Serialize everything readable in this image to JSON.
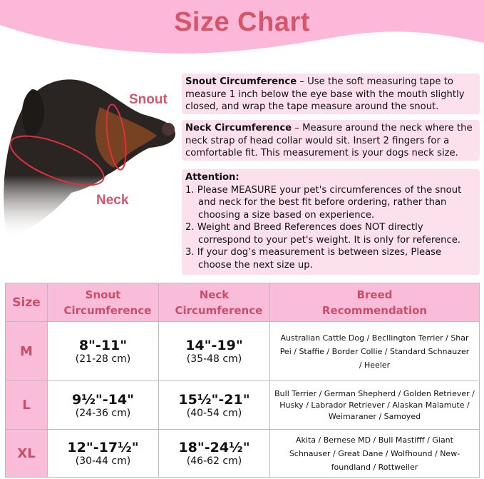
{
  "title": "Size Chart",
  "labels": {
    "snout": "Snout",
    "neck": "Neck"
  },
  "snout_box": {
    "heading": "Snout Circumference",
    "text": " – Use the soft measuring tape to measure 1 inch below the eye base with the mouth slightly closed, and wrap the tape measure around the snout."
  },
  "neck_box": {
    "heading": "Neck Circumference",
    "text": " – Measure around the neck where the neck strap of head collar would sit. Insert 2 fingers for a comfortable fit. This measurement is your dogs neck size."
  },
  "attention": {
    "heading": "Attention:",
    "items": [
      "1. Please MEASURE your pet's circumferences of the snout and neck for the best fit before ordering, rather than choosing a size based on experience.",
      "2. Weight and Breed References does NOT directly correspond to your pet's weight. It is only for reference.",
      "3. If your dog’s measurement is between sizes, Please choose the next size up."
    ]
  },
  "table": {
    "headers": [
      "Size",
      "Snout Circumference",
      "Neck Circumference",
      "Breed Recommendation"
    ],
    "rows": [
      {
        "size": "M",
        "snout_in": "8\"-11\"",
        "snout_cm": "(21-28 cm)",
        "neck_in": "14\"-19\"",
        "neck_cm": "(35-48 cm)",
        "breeds": "Australian Cattle Dog / Becllington Terrier / Shar Pei / Staffie / Border Collie / Standard Schnauzer / Heeler"
      },
      {
        "size": "L",
        "snout_in": "9½\"-14\"",
        "snout_cm": "(24-36 cm)",
        "neck_in": "15½\"-21\"",
        "neck_cm": "(40-54 cm)",
        "breeds": "Bull Terrier / German Shepherd / Golden Retriever / Husky / Labrador Retriever / Alaskan Malamute / Weimaraner / Samoyed"
      },
      {
        "size": "XL",
        "snout_in": "12\"-17½\"",
        "snout_cm": "(30-44 cm)",
        "neck_in": "18\"-24½\"",
        "neck_cm": "(46-62 cm)",
        "breeds": "Akita / Bernese MD / Bull Mastifff / Giant Schnauser / Great Dane / Wolfhound / New-foundland / Rottweiler"
      }
    ]
  },
  "colors": {
    "banner": "#fbb8d8",
    "accent": "#d5566a",
    "box": "#fce0ec",
    "header": "#f9bcd9"
  }
}
